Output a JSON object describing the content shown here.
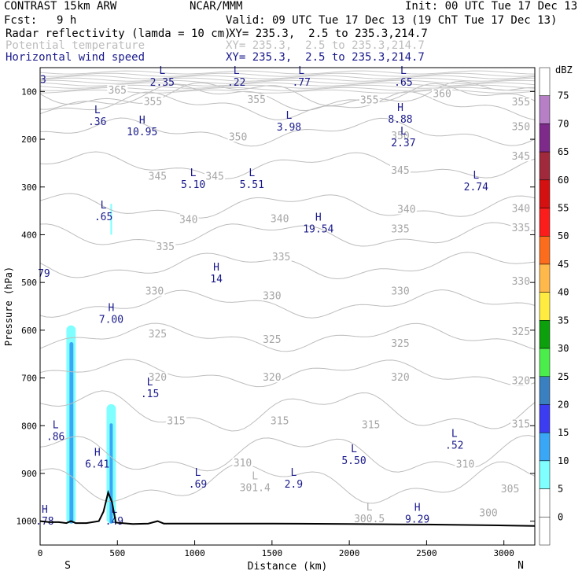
{
  "header": {
    "model": "CONTRAST 15km ARW",
    "center": "NCAR/MMM",
    "init": "Init: 00 UTC Tue 17 Dec 13",
    "fcst_label": "Fcst:",
    "fcst_value": "9 h",
    "valid": "Valid: 09 UTC Tue 17 Dec 13 (19 ChT Tue 17 Dec 13)",
    "fields": [
      {
        "name": "Radar reflectivity (lamda = 10 cm)",
        "xy": "XY= 235.3,  2.5 to 235.3,214.7",
        "color": "#000000"
      },
      {
        "name": "Potential temperature",
        "xy": "XY= 235.3,  2.5 to 235.3,214.7",
        "color": "#bdbdbd"
      },
      {
        "name": "Horizontal wind speed",
        "xy": "XY= 235.3,  2.5 to 235.3,214.7",
        "color": "#1a1a8c"
      }
    ]
  },
  "chart_data": {
    "type": "cross-section",
    "xlabel": "Distance (km)",
    "ylabel": "Pressure (hPa)",
    "x_range": [
      0,
      3200
    ],
    "y_range_hpa": [
      50,
      1050
    ],
    "y_scale": "linear",
    "x_ticks": [
      0,
      500,
      1000,
      1500,
      2000,
      2500,
      3000
    ],
    "y_ticks": [
      100,
      200,
      300,
      400,
      500,
      600,
      700,
      800,
      900,
      1000
    ],
    "x_end_labels": {
      "left": "S",
      "right": "N"
    },
    "theta_contours": [
      {
        "value": 365,
        "p": 105
      },
      {
        "value": 360,
        "p": 112
      },
      {
        "value": 355,
        "p": 130
      },
      {
        "value": 350,
        "p": 185
      },
      {
        "value": 345,
        "p": 255
      },
      {
        "value": 340,
        "p": 340
      },
      {
        "value": 335,
        "p": 400
      },
      {
        "value": 330,
        "p": 465
      },
      {
        "value": 325,
        "p": 545
      },
      {
        "value": 320,
        "p": 615
      },
      {
        "value": 315,
        "p": 690
      },
      {
        "value": 310,
        "p": 770
      },
      {
        "value": 305,
        "p": 860
      },
      {
        "value": 300,
        "p": 920
      }
    ],
    "theta_labels": [
      {
        "text": "365",
        "x": 500,
        "p": 104
      },
      {
        "text": "360",
        "x": 2600,
        "p": 112
      },
      {
        "text": "355",
        "x": 730,
        "p": 128
      },
      {
        "text": "355",
        "x": 1400,
        "p": 124
      },
      {
        "text": "355",
        "x": 2130,
        "p": 125
      },
      {
        "text": "355",
        "x": 3110,
        "p": 129
      },
      {
        "text": "350",
        "x": 1280,
        "p": 202
      },
      {
        "text": "350",
        "x": 2330,
        "p": 200
      },
      {
        "text": "350",
        "x": 3110,
        "p": 181
      },
      {
        "text": "345",
        "x": 760,
        "p": 285
      },
      {
        "text": "345",
        "x": 1130,
        "p": 285
      },
      {
        "text": "345",
        "x": 2330,
        "p": 272
      },
      {
        "text": "345",
        "x": 3110,
        "p": 243
      },
      {
        "text": "340",
        "x": 960,
        "p": 375
      },
      {
        "text": "340",
        "x": 1550,
        "p": 374
      },
      {
        "text": "340",
        "x": 2370,
        "p": 354
      },
      {
        "text": "340",
        "x": 3110,
        "p": 352
      },
      {
        "text": "335",
        "x": 810,
        "p": 432
      },
      {
        "text": "335",
        "x": 1560,
        "p": 454
      },
      {
        "text": "335",
        "x": 2330,
        "p": 395
      },
      {
        "text": "335",
        "x": 3110,
        "p": 393
      },
      {
        "text": "330",
        "x": 740,
        "p": 525
      },
      {
        "text": "330",
        "x": 1500,
        "p": 535
      },
      {
        "text": "330",
        "x": 2330,
        "p": 525
      },
      {
        "text": "330",
        "x": 3110,
        "p": 505
      },
      {
        "text": "325",
        "x": 760,
        "p": 615
      },
      {
        "text": "325",
        "x": 1500,
        "p": 627
      },
      {
        "text": "325",
        "x": 2330,
        "p": 635
      },
      {
        "text": "325",
        "x": 3110,
        "p": 610
      },
      {
        "text": "320",
        "x": 760,
        "p": 706
      },
      {
        "text": "320",
        "x": 1500,
        "p": 706
      },
      {
        "text": "320",
        "x": 2330,
        "p": 706
      },
      {
        "text": "320",
        "x": 3110,
        "p": 713
      },
      {
        "text": "315",
        "x": 880,
        "p": 797
      },
      {
        "text": "315",
        "x": 1550,
        "p": 797
      },
      {
        "text": "315",
        "x": 2140,
        "p": 805
      },
      {
        "text": "315",
        "x": 3110,
        "p": 804
      },
      {
        "text": "310",
        "x": 1310,
        "p": 885
      },
      {
        "text": "310",
        "x": 2750,
        "p": 888
      },
      {
        "text": "305",
        "x": 3040,
        "p": 940
      },
      {
        "text": "300",
        "x": 2900,
        "p": 990
      }
    ],
    "theta_minmax": [
      {
        "kind": "L",
        "value": "301.4",
        "x": 1390,
        "p": 937
      },
      {
        "kind": "L",
        "value": "300.5",
        "x": 2130,
        "p": 1002
      }
    ],
    "wind_extrema": [
      {
        "kind": "",
        "value": "3",
        "x": 20,
        "p": 82
      },
      {
        "kind": "L",
        "value": "2.35",
        "x": 790,
        "p": 88
      },
      {
        "kind": "L",
        "value": ".22",
        "x": 1270,
        "p": 88
      },
      {
        "kind": "L",
        "value": ".77",
        "x": 1690,
        "p": 88
      },
      {
        "kind": "L",
        "value": ".65",
        "x": 2350,
        "p": 88
      },
      {
        "kind": "L",
        "value": ".36",
        "x": 370,
        "p": 170
      },
      {
        "kind": "H",
        "value": "10.95",
        "x": 660,
        "p": 192
      },
      {
        "kind": "L",
        "value": "3.98",
        "x": 1610,
        "p": 182
      },
      {
        "kind": "H",
        "value": "8.88",
        "x": 2330,
        "p": 165
      },
      {
        "kind": "L",
        "value": "2.37",
        "x": 2350,
        "p": 215
      },
      {
        "kind": "L",
        "value": "5.10",
        "x": 990,
        "p": 302
      },
      {
        "kind": "L",
        "value": "5.51",
        "x": 1370,
        "p": 302
      },
      {
        "kind": "L",
        "value": "2.74",
        "x": 2820,
        "p": 307
      },
      {
        "kind": "L",
        "value": ".65",
        "x": 410,
        "p": 370
      },
      {
        "kind": "H",
        "value": "19.54",
        "x": 1800,
        "p": 395
      },
      {
        "kind": "",
        "value": "79",
        "x": 25,
        "p": 488
      },
      {
        "kind": "H",
        "value": "14",
        "x": 1140,
        "p": 500
      },
      {
        "kind": "H",
        "value": "7.00",
        "x": 460,
        "p": 585
      },
      {
        "kind": "L",
        "value": ".15",
        "x": 710,
        "p": 740
      },
      {
        "kind": "L",
        "value": ".86",
        "x": 100,
        "p": 830
      },
      {
        "kind": "H",
        "value": "6.41",
        "x": 370,
        "p": 888
      },
      {
        "kind": "L",
        "value": "5.50",
        "x": 2030,
        "p": 880
      },
      {
        "kind": "L",
        "value": ".52",
        "x": 2680,
        "p": 848
      },
      {
        "kind": "L",
        "value": ".69",
        "x": 1020,
        "p": 930
      },
      {
        "kind": "L",
        "value": "2.9",
        "x": 1640,
        "p": 930
      },
      {
        "kind": "H",
        "value": "9.29",
        "x": 2440,
        "p": 1003
      },
      {
        "kind": "H",
        "value": ".78",
        "x": 30,
        "p": 1007
      },
      {
        "kind": "L",
        "value": ".49",
        "x": 480,
        "p": 1007
      }
    ],
    "reflectivity_cells": [
      {
        "x": [
          170,
          230
        ],
        "p_top": 590,
        "p_bottom": 1005,
        "core": [
          190,
          215
        ],
        "core_top": 625,
        "dbz_outer": 5,
        "dbz_core": 10
      },
      {
        "x": [
          430,
          490
        ],
        "p_top": 755,
        "p_bottom": 1005,
        "core": [
          450,
          470
        ],
        "core_top": 795,
        "dbz_outer": 5,
        "dbz_core": 10
      },
      {
        "x": [
          455,
          465
        ],
        "p_top": 335,
        "p_bottom": 400,
        "core": [
          455,
          465
        ],
        "core_top": 335,
        "dbz_outer": 5,
        "dbz_core": 5
      }
    ],
    "terrain": [
      [
        0,
        1000
      ],
      [
        60,
        1002
      ],
      [
        120,
        1002
      ],
      [
        170,
        1004
      ],
      [
        200,
        1000
      ],
      [
        230,
        1004
      ],
      [
        300,
        1004
      ],
      [
        380,
        1000
      ],
      [
        410,
        980
      ],
      [
        440,
        940
      ],
      [
        465,
        960
      ],
      [
        490,
        1003
      ],
      [
        600,
        1006
      ],
      [
        700,
        1005
      ],
      [
        760,
        1000
      ],
      [
        800,
        1005
      ],
      [
        1000,
        1005
      ],
      [
        1500,
        1005
      ],
      [
        2000,
        1006
      ],
      [
        2500,
        1007
      ],
      [
        3000,
        1009
      ],
      [
        3200,
        1010
      ]
    ],
    "colorbar": {
      "title": "dBZ",
      "levels": [
        0,
        5,
        10,
        15,
        20,
        25,
        30,
        35,
        40,
        45,
        50,
        55,
        60,
        65,
        70,
        75
      ],
      "colors": [
        "#ffffff",
        "#7fffff",
        "#3aa7f6",
        "#3c3cf2",
        "#2a5fcb",
        "#3a7fbf",
        "#4bed4b",
        "#0ca00c",
        "#0a800a",
        "#ffec40",
        "#ffb84a",
        "#fb6c1d",
        "#fb1c1c",
        "#d41010",
        "#a02a3c",
        "#7d2a8a",
        "#a050b0",
        "#b67fc6"
      ],
      "bands": [
        {
          "color": "#ffffff",
          "from": -5,
          "to": 0
        },
        {
          "color": "#ffffff",
          "from": 0,
          "to": 5
        },
        {
          "color": "#7fffff",
          "from": 5,
          "to": 10
        },
        {
          "color": "#3aa7f6",
          "from": 10,
          "to": 15
        },
        {
          "color": "#3c3cf2",
          "from": 15,
          "to": 20
        },
        {
          "color": "#3a7fbf",
          "from": 20,
          "to": 25
        },
        {
          "color": "#4bed4b",
          "from": 25,
          "to": 30
        },
        {
          "color": "#0ca00c",
          "from": 30,
          "to": 35
        },
        {
          "color": "#ffec40",
          "from": 35,
          "to": 40
        },
        {
          "color": "#ffb84a",
          "from": 40,
          "to": 45
        },
        {
          "color": "#fb6c1d",
          "from": 45,
          "to": 50
        },
        {
          "color": "#fb1c1c",
          "from": 50,
          "to": 55
        },
        {
          "color": "#d41010",
          "from": 55,
          "to": 60
        },
        {
          "color": "#a02a3c",
          "from": 60,
          "to": 65
        },
        {
          "color": "#7d2a8a",
          "from": 65,
          "to": 70
        },
        {
          "color": "#b67fc6",
          "from": 70,
          "to": 75
        },
        {
          "color": "#ffffff",
          "from": 75,
          "to": 80
        }
      ]
    }
  }
}
